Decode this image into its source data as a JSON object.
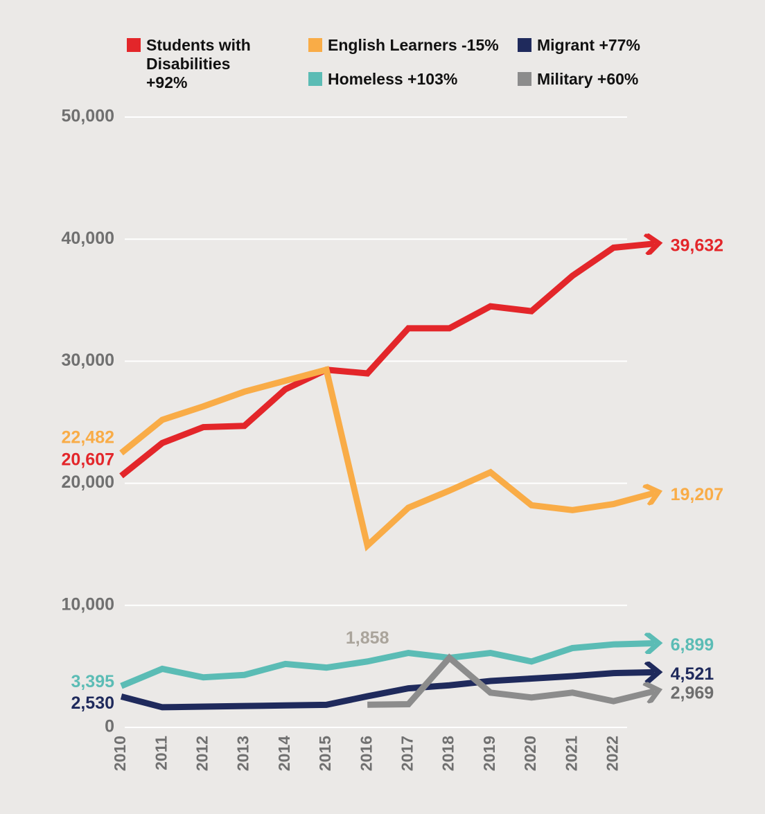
{
  "chart_data": {
    "type": "line",
    "categories": [
      "2010",
      "2011",
      "2012",
      "2013",
      "2014",
      "2015",
      "2016",
      "2017",
      "2018",
      "2019",
      "2020",
      "2021",
      "2022",
      null
    ],
    "ylim": [
      0,
      50000
    ],
    "yticks": [
      0,
      {
        "value": 10000,
        "label": "10,000"
      },
      {
        "value": 20000,
        "label": "20,000"
      },
      {
        "value": 30000,
        "label": "30,000"
      },
      {
        "value": 40000,
        "label": "40,000"
      },
      {
        "value": 50000,
        "label": "50,000"
      }
    ],
    "grid": true,
    "series": [
      {
        "name": "Students with Disabilities +92%",
        "color": "#e3262a",
        "values": [
          20607,
          23300,
          24600,
          24700,
          27700,
          29300,
          29000,
          32700,
          32700,
          34500,
          34100,
          37000,
          39300,
          39632
        ],
        "value_labels": [
          "20,607",
          null,
          null,
          null,
          null,
          null,
          null,
          null,
          null,
          null,
          null,
          null,
          null,
          "39,632"
        ]
      },
      {
        "name": "English Learners -15%",
        "color": "#f9ac47",
        "values": [
          22482,
          25200,
          26300,
          27500,
          28400,
          29300,
          14900,
          18000,
          19400,
          20900,
          18200,
          17800,
          18300,
          19207
        ],
        "value_labels": [
          "22,482",
          null,
          null,
          null,
          null,
          null,
          null,
          null,
          null,
          null,
          null,
          null,
          null,
          "19,207"
        ]
      },
      {
        "name": "Migrant +77%",
        "color": "#1f2a5c",
        "values": [
          2530,
          1650,
          1700,
          1750,
          1800,
          1850,
          2550,
          3200,
          3450,
          3800,
          4000,
          4200,
          4450,
          4521
        ],
        "value_labels": [
          "2,530",
          null,
          null,
          null,
          null,
          null,
          null,
          null,
          null,
          null,
          null,
          null,
          null,
          "4,521"
        ]
      },
      {
        "name": "Homeless +103%",
        "color": "#5bbcb5",
        "values": [
          3395,
          4800,
          4100,
          4300,
          5200,
          4900,
          5400,
          6100,
          5700,
          6100,
          5400,
          6500,
          6800,
          6899
        ],
        "value_labels": [
          "3,395",
          null,
          null,
          null,
          null,
          null,
          null,
          null,
          null,
          null,
          null,
          null,
          null,
          "6,899"
        ]
      },
      {
        "name": "Military +60%",
        "color": "#8c8c8c",
        "values": [
          null,
          null,
          null,
          null,
          null,
          null,
          1858,
          1900,
          5700,
          2850,
          2450,
          2850,
          2150,
          2969
        ],
        "value_labels": [
          null,
          null,
          null,
          null,
          null,
          null,
          "1,858",
          null,
          null,
          null,
          null,
          null,
          null,
          "2,969"
        ]
      }
    ]
  }
}
